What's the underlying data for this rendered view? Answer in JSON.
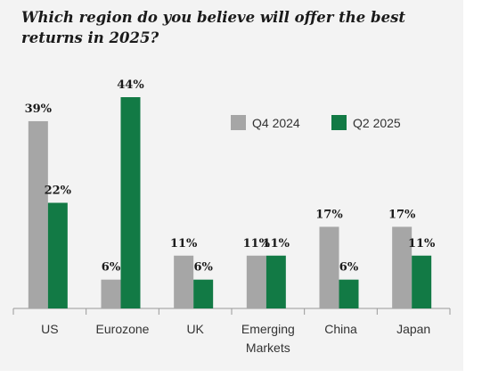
{
  "chart_data": {
    "type": "bar",
    "title": "Which region do you believe will offer the best returns in 2025?",
    "categories": [
      [
        "US"
      ],
      [
        "Eurozone"
      ],
      [
        "UK"
      ],
      [
        "Emerging",
        "Markets"
      ],
      [
        "China"
      ],
      [
        "Japan"
      ]
    ],
    "series": [
      {
        "name": "Q4 2024",
        "color": "#a6a6a6",
        "values": [
          39,
          6,
          11,
          11,
          17,
          17
        ],
        "labels": [
          "39%",
          "6%",
          "11%",
          "11%",
          "17%",
          "17%"
        ]
      },
      {
        "name": "Q2 2025",
        "color": "#127a45",
        "values": [
          22,
          44,
          6,
          11,
          6,
          11
        ],
        "labels": [
          "22%",
          "44%",
          "6%",
          "11%",
          "6%",
          "11%"
        ]
      }
    ],
    "ylim": [
      0,
      44
    ],
    "legend_position": "top-right",
    "grid": false
  }
}
